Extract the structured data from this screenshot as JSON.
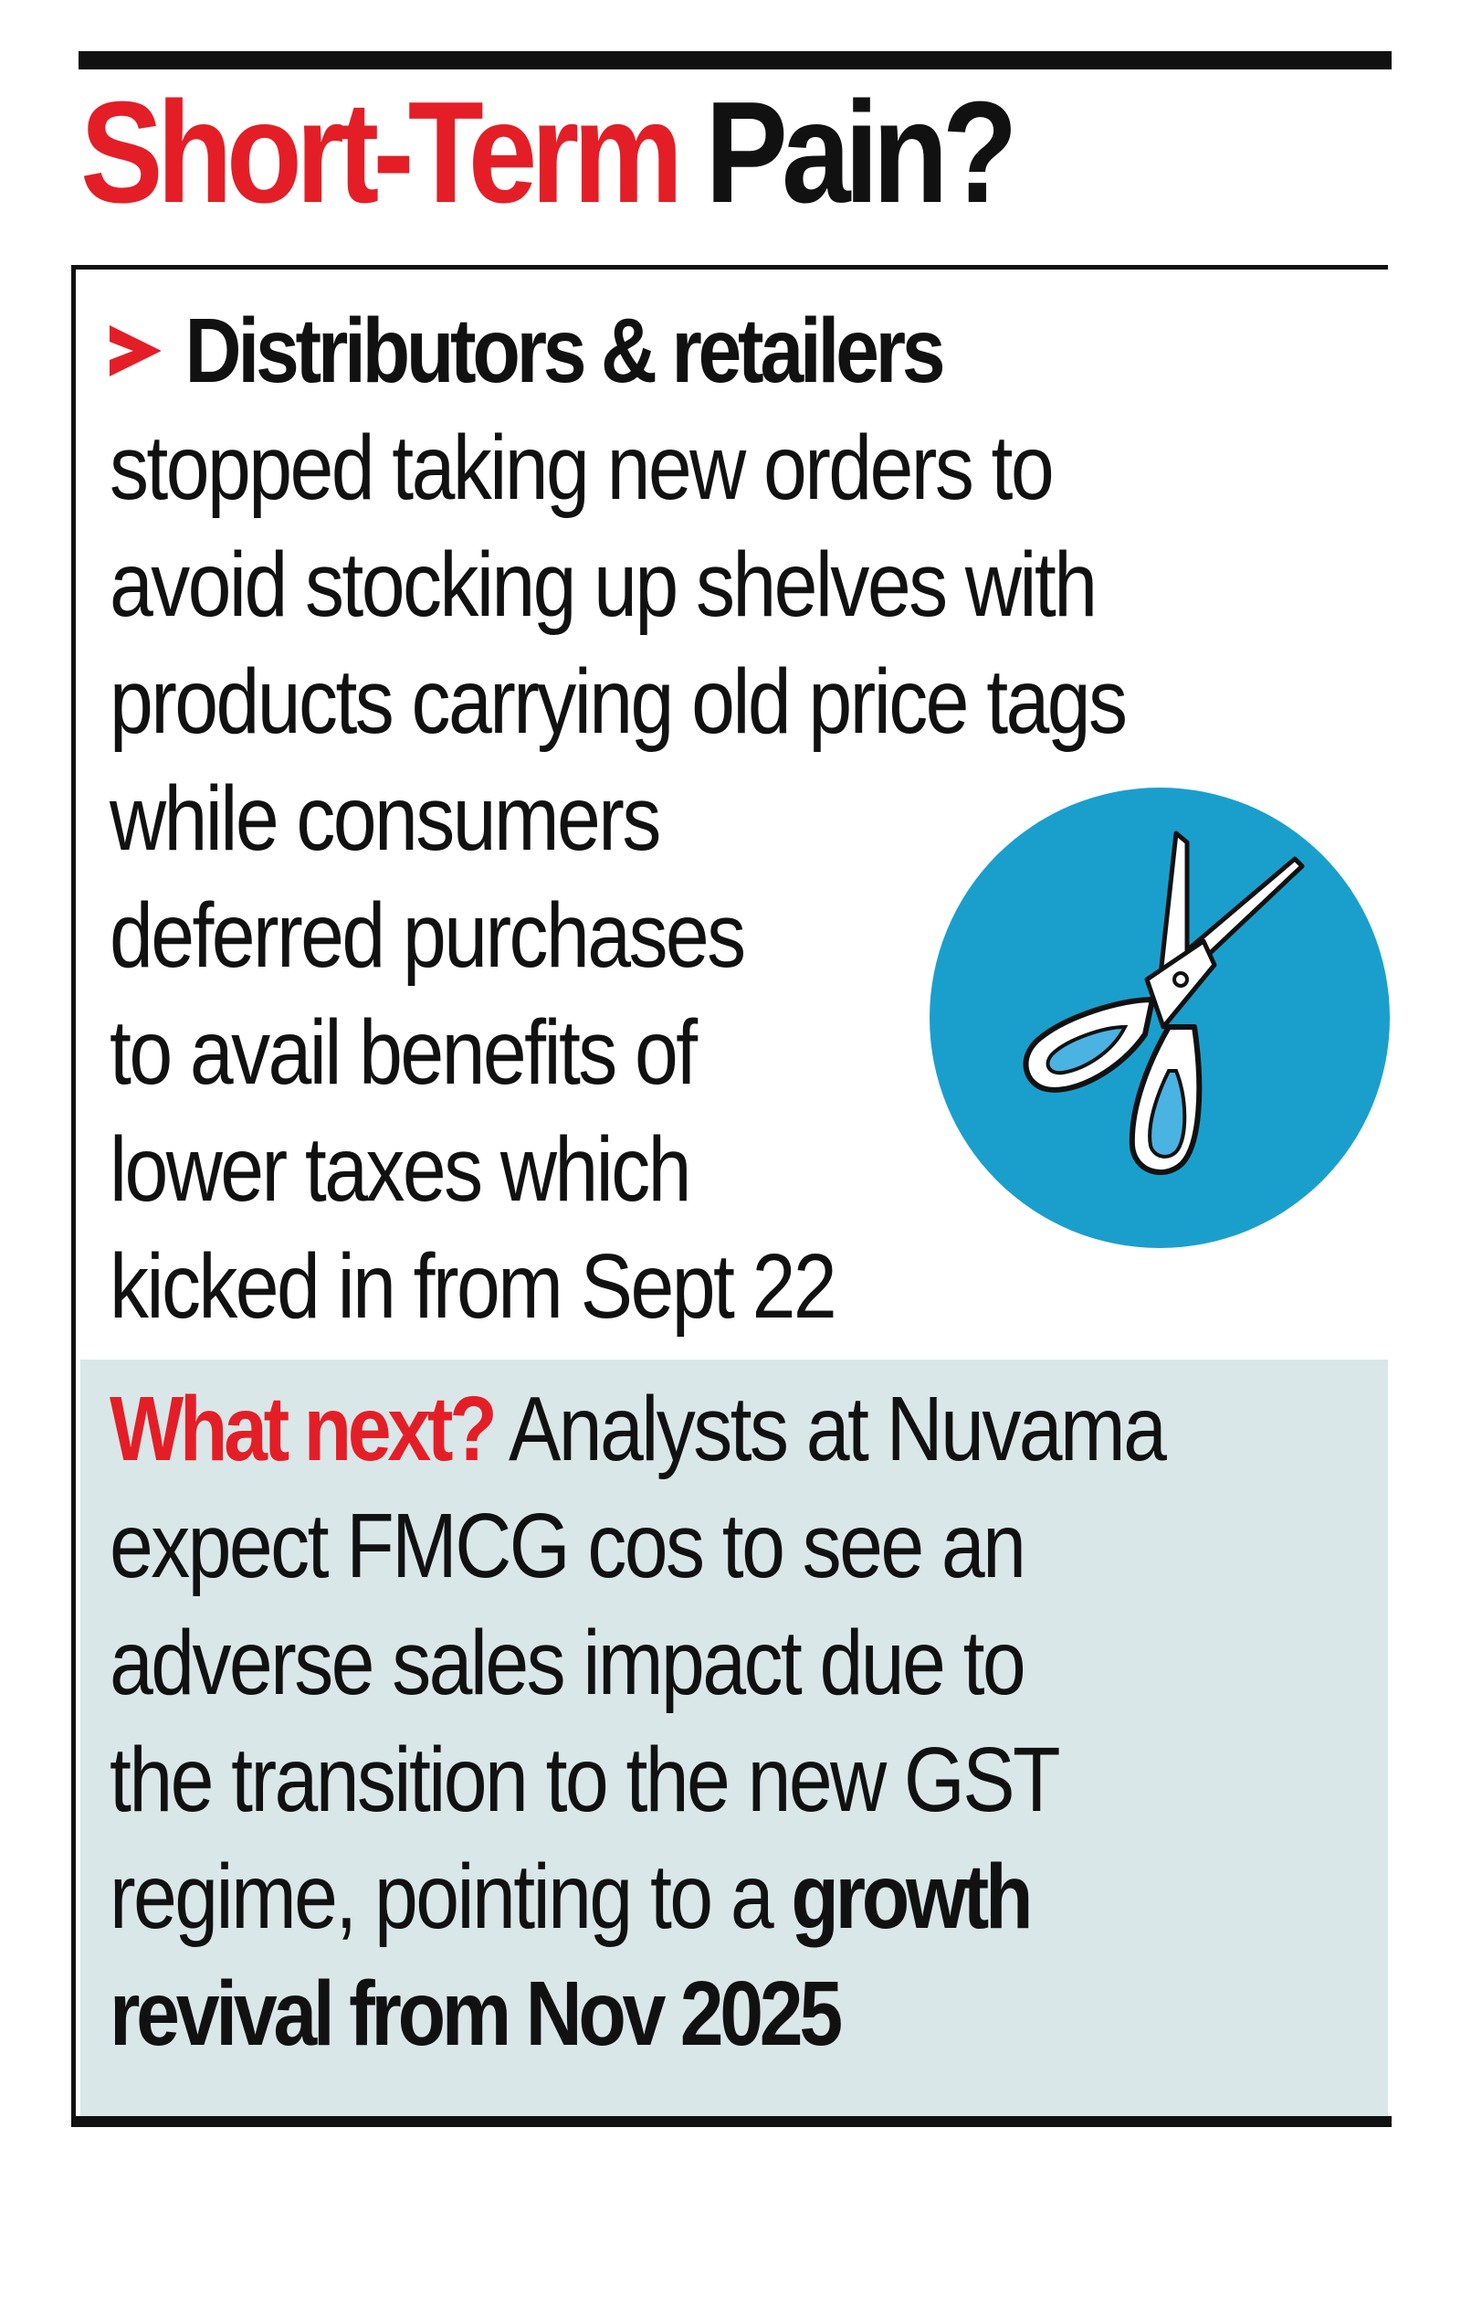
{
  "headline": {
    "part1": "Short-Term",
    "part2": "Pain?"
  },
  "section1": {
    "lead": "Distributors & retailers",
    "lines": [
      "stopped taking new orders to",
      "avoid stocking up shelves with",
      "products carrying old price tags",
      "while consumers",
      "deferred purchases",
      "to avail benefits of",
      "lower taxes which",
      "kicked in from Sept 22"
    ]
  },
  "section2": {
    "label": "What next?",
    "line1_rest": " Analysts at Nuvama",
    "lines": [
      "expect FMCG cos to see an",
      "adverse sales impact due to",
      "the transition to the new GST"
    ],
    "line5_normal": "regime, pointing to a ",
    "line5_bold": "growth",
    "line6_bold": "revival from Nov 2025"
  },
  "colors": {
    "accent_red": "#e41e26",
    "circle_blue": "#1a9fcd",
    "handle_blue": "#4ab3e2",
    "panel_tint": "#d9e7e8",
    "text": "#111111"
  },
  "icons": {
    "bullet": "arrowhead-icon",
    "illustration": "scissors-icon"
  }
}
